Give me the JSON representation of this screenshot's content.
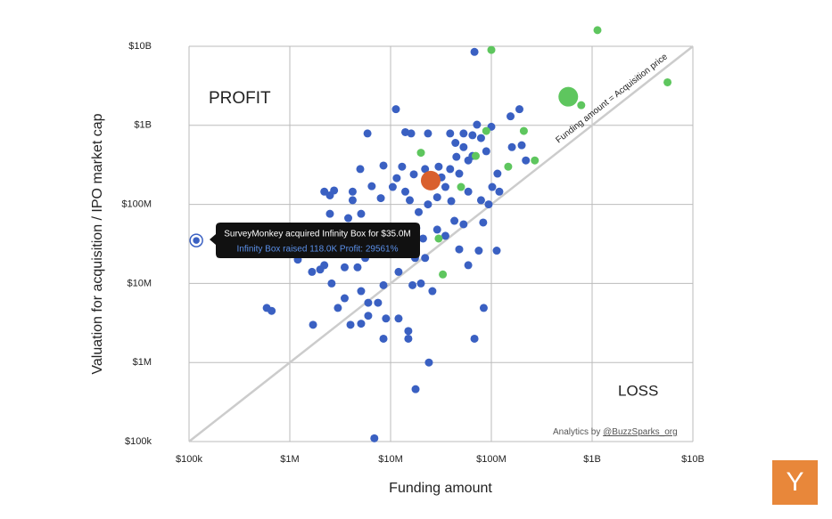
{
  "chart_data": {
    "type": "scatter",
    "x_label": "Funding amount",
    "y_label": "Valuation for acquisition / IPO market cap",
    "log_x": true,
    "log_y": true,
    "grid": true,
    "xlim": [
      100000,
      10000000000
    ],
    "ylim": [
      100000,
      10000000000
    ],
    "xticks": [
      {
        "value": 100000,
        "label": "$100k"
      },
      {
        "value": 1000000,
        "label": "$1M"
      },
      {
        "value": 10000000,
        "label": "$10M"
      },
      {
        "value": 100000000,
        "label": "$100M"
      },
      {
        "value": 1000000000,
        "label": "$1B"
      },
      {
        "value": 10000000000,
        "label": "$10B"
      }
    ],
    "yticks": [
      {
        "value": 100000,
        "label": "$100k"
      },
      {
        "value": 1000000,
        "label": "$1M"
      },
      {
        "value": 10000000,
        "label": "$10M"
      },
      {
        "value": 100000000,
        "label": "$100M"
      },
      {
        "value": 1000000000,
        "label": "$1B"
      },
      {
        "value": 10000000000,
        "label": "$10B"
      }
    ],
    "reference_line": "Funding amount = Acquisition price",
    "region_top": "PROFIT",
    "region_bottom": "LOSS",
    "credit_prefix": "Analytics by",
    "credit_handle": "@BuzzSparks_org",
    "tooltip": {
      "title": "SurveyMonkey acquired Infinity Box for $35.0M",
      "detail": "Infinity Box raised 118.0K Profit: 29561%"
    },
    "highlight": {
      "series": 0,
      "index": 98
    },
    "series": [
      {
        "color": "#3a60c2",
        "marker_size": 4.5,
        "x": [
          6900000.0,
          17700000.0,
          24000000.0,
          68000000.0,
          84000000.0,
          113000000.0,
          590000.0,
          660000.0,
          1700000.0,
          4000000.0,
          5100000.0,
          8500000.0,
          15000000.0,
          15000000.0,
          6000000.0,
          9000000.0,
          12000000.0,
          3000000.0,
          3500000.0,
          6000000.0,
          7500000.0,
          2600000.0,
          5100000.0,
          8500000.0,
          12000000.0,
          16500000.0,
          20000000.0,
          26000000.0,
          1660000.0,
          2000000.0,
          1200000.0,
          2200000.0,
          3500000.0,
          4700000.0,
          17500000.0,
          22000000.0,
          48000000.0,
          59000000.0,
          75000000.0,
          5600000.0,
          7600000.0,
          10400000.0,
          14000000.0,
          21000000.0,
          29000000.0,
          35000000.0,
          43000000.0,
          53000000.0,
          83000000.0,
          5100000.0,
          3800000.0,
          2500000.0,
          3100000.0,
          4200000.0,
          2500000.0,
          2200000.0,
          2750000.0,
          4200000.0,
          5000000.0,
          8500000.0,
          11500000.0,
          10500000.0,
          14000000.0,
          15500000.0,
          19000000.0,
          23500000.0,
          29000000.0,
          35000000.0,
          39000000.0,
          48000000.0,
          59000000.0,
          65000000.0,
          53000000.0,
          44000000.0,
          39000000.0,
          53000000.0,
          65000000.0,
          79000000.0,
          72000000.0,
          89000000.0,
          102000000.0,
          94000000.0,
          79000000.0,
          59000000.0,
          120000000.0,
          115000000.0,
          160000000.0,
          200000000.0,
          220000000.0,
          155000000.0,
          190000000.0,
          100000000.0,
          11300000.0,
          5900000.0,
          68000000.0,
          14000000.0,
          16000000.0,
          23500000.0,
          118000,
          30000000.0,
          22000000.0,
          17000000.0,
          32000000.0,
          18000000.0,
          40000000.0,
          8000000.0,
          6500000.0,
          13000000.0,
          45000000.0,
          3000000.0
        ],
        "values": [
          110000.0,
          460000.0,
          1000000.0,
          2000000.0,
          4900000.0,
          26000000.0,
          4900000.0,
          4500000.0,
          3000000.0,
          3000000.0,
          3100000.0,
          2000000.0,
          2000000.0,
          2500000.0,
          3900000.0,
          3600000.0,
          3600000.0,
          4900000.0,
          6500000.0,
          5700000.0,
          5700000.0,
          10000000.0,
          8000000.0,
          9500000.0,
          14000000.0,
          9500000.0,
          10000000.0,
          8000000.0,
          14000000.0,
          15000000.0,
          20000000.0,
          17000000.0,
          16000000.0,
          16000000.0,
          21000000.0,
          21000000.0,
          27000000.0,
          17000000.0,
          26000000.0,
          21000000.0,
          33000000.0,
          31000000.0,
          45000000.0,
          37000000.0,
          48000000.0,
          40000000.0,
          62000000.0,
          56000000.0,
          59000000.0,
          76000000.0,
          67000000.0,
          76000000.0,
          45000000.0,
          113000000.0,
          130000000.0,
          145000000.0,
          150000000.0,
          145000000.0,
          280000000.0,
          310000000.0,
          215000000.0,
          166000000.0,
          145000000.0,
          113000000.0,
          80000000.0,
          100000000.0,
          123000000.0,
          166000000.0,
          280000000.0,
          245000000.0,
          360000000.0,
          410000000.0,
          530000000.0,
          600000000.0,
          790000000.0,
          790000000.0,
          750000000.0,
          690000000.0,
          1020000000.0,
          470000000.0,
          166000000.0,
          100000000.0,
          113000000.0,
          145000000.0,
          145000000.0,
          245000000.0,
          530000000.0,
          560000000.0,
          360000000.0,
          1300000000.0,
          1600000000.0,
          960000000.0,
          1600000000.0,
          790000000.0,
          8500000000.0,
          820000000.0,
          790000000.0,
          790000000.0,
          35000000.0,
          300000000.0,
          280000000.0,
          240000000.0,
          220000000.0,
          50000000.0,
          110000000.0,
          120000000.0,
          170000000.0,
          300000000.0,
          400000000.0,
          25000000.0
        ]
      },
      {
        "color": "#5ec65e",
        "marker_size": 4.5,
        "x": [
          1130000000.0,
          100000000.0,
          5600000000.0,
          780000000.0,
          210000000.0,
          89000000.0,
          270000000.0,
          147000000.0,
          70000000.0,
          20000000.0,
          50000000.0,
          30000000.0,
          33000000.0
        ],
        "values": [
          16000000000.0,
          9000000000.0,
          3500000000.0,
          1800000000.0,
          850000000.0,
          850000000.0,
          360000000.0,
          300000000.0,
          410000000.0,
          450000000.0,
          166000000.0,
          37000000.0,
          13000000.0
        ]
      },
      {
        "color": "#5ec65e",
        "marker_size": 11,
        "x": [
          580000000.0
        ],
        "values": [
          2300000000.0
        ]
      },
      {
        "color": "#d9602e",
        "marker_size": 11,
        "x": [
          25000000.0
        ],
        "values": [
          200000000.0
        ]
      }
    ],
    "logo": "Y",
    "logo_color": "#e8873a"
  }
}
